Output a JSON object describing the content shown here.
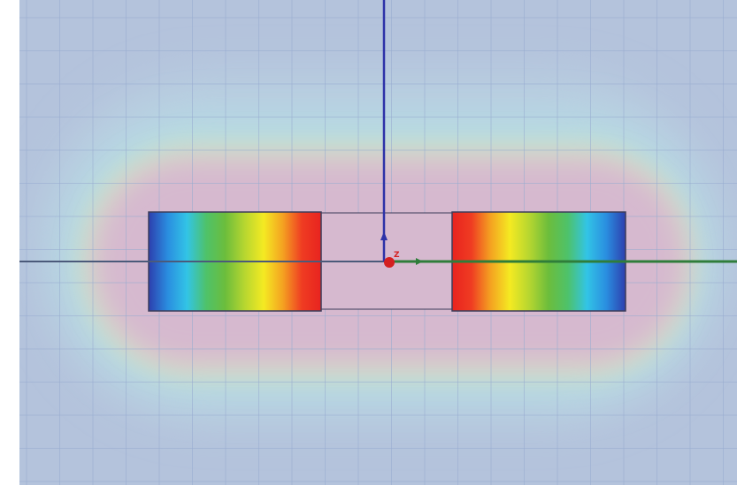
{
  "viewport": {
    "background": "#b4c3dc",
    "grid_color": "#98acd0",
    "field_palette": {
      "outer": "#b8cde0",
      "cyan": "#b6dbe4",
      "green": "#c2dfce",
      "yellow": "#d9d7c8",
      "inner_pink": "#d6b9cf"
    },
    "magnet_gradient": [
      "#2d3fae",
      "#2a8ee0",
      "#32c4e6",
      "#4ec26a",
      "#6cbd3c",
      "#b6d630",
      "#f4ea22",
      "#f4a221",
      "#ef3c22",
      "#e8231f"
    ],
    "axis_colors": {
      "z_axis": "#2d32a8",
      "x_axis": "#2f7d3a",
      "center_marker": "#d42020",
      "outline": "#3c3c5a"
    }
  },
  "axis_labels": {
    "z": "Z"
  }
}
